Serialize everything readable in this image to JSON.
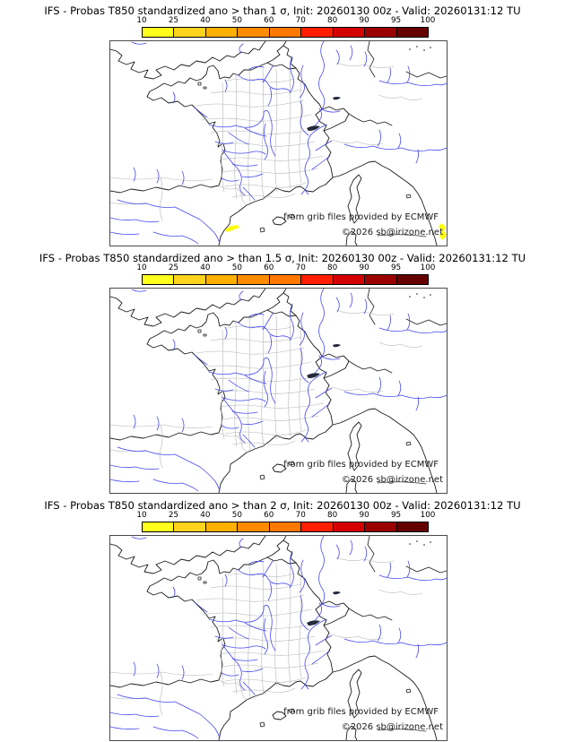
{
  "page": {
    "background": "#ffffff"
  },
  "panels": [
    {
      "title": "IFS - Probas T850  standardized ano > than 1 σ, Init: 20260130 00z - Valid: 20260131:12 TU"
    },
    {
      "title": "IFS - Probas T850  standardized ano > than 1.5 σ, Init: 20260130 00z - Valid: 20260131:12 TU"
    },
    {
      "title": "IFS - Probas T850  standardized ano > than 2 σ, Init: 20260130 00z - Valid: 20260131:12 TU"
    }
  ],
  "colorbar": {
    "ticks": [
      "10",
      "25",
      "40",
      "50",
      "60",
      "70",
      "80",
      "90",
      "95",
      "100"
    ],
    "colors": [
      "#ffff1e",
      "#ffd41e",
      "#ffb000",
      "#ff8c00",
      "#ff7800",
      "#ff1e00",
      "#d40000",
      "#9b0000",
      "#650000"
    ]
  },
  "map": {
    "attribution_line1": "from grib files provided by ECMWF",
    "attribution_line2": "©2026 sb@irizone.net",
    "coast_color": "#1c1c1c",
    "admin_color": "#b5b5b5",
    "river_color": "#4848ee",
    "frame_color": "#4a4a4a",
    "highlight_color": "#ffff00"
  }
}
